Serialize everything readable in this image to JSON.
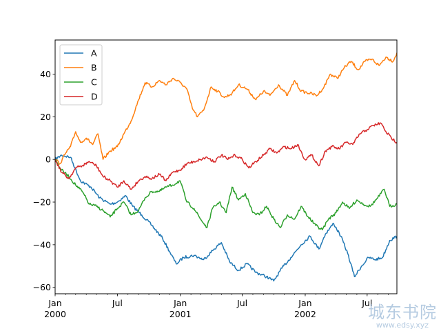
{
  "chart_data": {
    "type": "line",
    "title": "",
    "xlabel": "",
    "ylabel": "",
    "x_range": [
      "2000-01-01",
      "2002-09-26"
    ],
    "ylim": [
      -63,
      56
    ],
    "yticks": [
      -60,
      -40,
      -20,
      0,
      20,
      40
    ],
    "xticks_major": [
      {
        "date": "2000-01-01",
        "label": "Jan",
        "sublabel": "2000"
      },
      {
        "date": "2000-07-01",
        "label": "Jul",
        "sublabel": ""
      },
      {
        "date": "2001-01-01",
        "label": "Jan",
        "sublabel": "2001"
      },
      {
        "date": "2001-07-01",
        "label": "Jul",
        "sublabel": ""
      },
      {
        "date": "2002-01-01",
        "label": "Jan",
        "sublabel": "2002"
      },
      {
        "date": "2002-07-01",
        "label": "Jul",
        "sublabel": ""
      }
    ],
    "grid": false,
    "legend": "upper-left",
    "series": [
      {
        "name": "A",
        "color": "#1f77b4",
        "points": [
          [
            "2000-01-01",
            0
          ],
          [
            "2000-01-20",
            2
          ],
          [
            "2000-02-15",
            1
          ],
          [
            "2000-03-15",
            -10
          ],
          [
            "2000-04-15",
            -13
          ],
          [
            "2000-05-10",
            -18
          ],
          [
            "2000-06-10",
            -21
          ],
          [
            "2000-07-01",
            -20
          ],
          [
            "2000-07-25",
            -17
          ],
          [
            "2000-08-15",
            -22
          ],
          [
            "2000-09-10",
            -26
          ],
          [
            "2000-10-10",
            -31
          ],
          [
            "2000-11-10",
            -37
          ],
          [
            "2000-11-30",
            -43
          ],
          [
            "2000-12-20",
            -49
          ],
          [
            "2001-01-10",
            -46
          ],
          [
            "2001-02-10",
            -45
          ],
          [
            "2001-03-10",
            -47
          ],
          [
            "2001-04-10",
            -42
          ],
          [
            "2001-05-01",
            -39
          ],
          [
            "2001-05-25",
            -48
          ],
          [
            "2001-06-20",
            -52
          ],
          [
            "2001-07-15",
            -49
          ],
          [
            "2001-08-10",
            -53
          ],
          [
            "2001-09-10",
            -55
          ],
          [
            "2001-10-01",
            -57
          ],
          [
            "2001-10-25",
            -51
          ],
          [
            "2001-11-20",
            -46
          ],
          [
            "2001-12-20",
            -40
          ],
          [
            "2002-01-15",
            -36
          ],
          [
            "2002-02-10",
            -42
          ],
          [
            "2002-03-01",
            -35
          ],
          [
            "2002-03-25",
            -30
          ],
          [
            "2002-04-15",
            -36
          ],
          [
            "2002-05-05",
            -44
          ],
          [
            "2002-05-25",
            -55
          ],
          [
            "2002-06-15",
            -50
          ],
          [
            "2002-07-05",
            -46
          ],
          [
            "2002-07-25",
            -47
          ],
          [
            "2002-08-15",
            -46
          ],
          [
            "2002-09-05",
            -38
          ],
          [
            "2002-09-26",
            -36
          ]
        ]
      },
      {
        "name": "B",
        "color": "#ff7f0e",
        "points": [
          [
            "2000-01-01",
            0
          ],
          [
            "2000-01-15",
            -2
          ],
          [
            "2000-02-01",
            3
          ],
          [
            "2000-02-15",
            6
          ],
          [
            "2000-03-01",
            13
          ],
          [
            "2000-03-15",
            8
          ],
          [
            "2000-04-01",
            10
          ],
          [
            "2000-04-20",
            7
          ],
          [
            "2000-05-05",
            12
          ],
          [
            "2000-05-20",
            0
          ],
          [
            "2000-06-10",
            4
          ],
          [
            "2000-07-01",
            6
          ],
          [
            "2000-07-20",
            12
          ],
          [
            "2000-08-10",
            18
          ],
          [
            "2000-09-01",
            28
          ],
          [
            "2000-09-20",
            36
          ],
          [
            "2000-10-10",
            34
          ],
          [
            "2000-11-01",
            37
          ],
          [
            "2000-11-20",
            35
          ],
          [
            "2000-12-10",
            38
          ],
          [
            "2001-01-01",
            36
          ],
          [
            "2001-01-20",
            33
          ],
          [
            "2001-02-05",
            24
          ],
          [
            "2001-02-20",
            20
          ],
          [
            "2001-03-10",
            23
          ],
          [
            "2001-04-01",
            34
          ],
          [
            "2001-04-20",
            32
          ],
          [
            "2001-05-10",
            29
          ],
          [
            "2001-06-01",
            31
          ],
          [
            "2001-06-20",
            35
          ],
          [
            "2001-07-15",
            33
          ],
          [
            "2001-08-10",
            28
          ],
          [
            "2001-09-01",
            32
          ],
          [
            "2001-09-20",
            30
          ],
          [
            "2001-10-15",
            35
          ],
          [
            "2001-11-10",
            30
          ],
          [
            "2001-12-01",
            37
          ],
          [
            "2001-12-20",
            32
          ],
          [
            "2002-01-15",
            31
          ],
          [
            "2002-02-05",
            30
          ],
          [
            "2002-02-25",
            34
          ],
          [
            "2002-03-15",
            40
          ],
          [
            "2002-04-05",
            38
          ],
          [
            "2002-04-25",
            43
          ],
          [
            "2002-05-15",
            46
          ],
          [
            "2002-06-05",
            42
          ],
          [
            "2002-06-25",
            46
          ],
          [
            "2002-07-15",
            47
          ],
          [
            "2002-08-05",
            44
          ],
          [
            "2002-08-25",
            48
          ],
          [
            "2002-09-15",
            46
          ],
          [
            "2002-09-26",
            50
          ]
        ]
      },
      {
        "name": "C",
        "color": "#2ca02c",
        "points": [
          [
            "2000-01-01",
            0
          ],
          [
            "2000-01-20",
            -5
          ],
          [
            "2000-02-10",
            -8
          ],
          [
            "2000-03-01",
            -12
          ],
          [
            "2000-03-20",
            -15
          ],
          [
            "2000-04-10",
            -21
          ],
          [
            "2000-05-01",
            -22
          ],
          [
            "2000-05-20",
            -24
          ],
          [
            "2000-06-10",
            -27
          ],
          [
            "2000-07-01",
            -23
          ],
          [
            "2000-07-20",
            -20
          ],
          [
            "2000-08-10",
            -26
          ],
          [
            "2000-09-01",
            -24
          ],
          [
            "2000-09-20",
            -18
          ],
          [
            "2000-10-10",
            -15
          ],
          [
            "2000-11-01",
            -15
          ],
          [
            "2000-11-20",
            -13
          ],
          [
            "2000-12-10",
            -12
          ],
          [
            "2000-12-31",
            -10
          ],
          [
            "2001-01-20",
            -20
          ],
          [
            "2001-02-10",
            -23
          ],
          [
            "2001-03-01",
            -28
          ],
          [
            "2001-03-20",
            -32
          ],
          [
            "2001-04-05",
            -23
          ],
          [
            "2001-04-25",
            -20
          ],
          [
            "2001-05-15",
            -25
          ],
          [
            "2001-06-01",
            -13
          ],
          [
            "2001-06-20",
            -19
          ],
          [
            "2001-07-10",
            -16
          ],
          [
            "2001-08-01",
            -25
          ],
          [
            "2001-08-20",
            -26
          ],
          [
            "2001-09-10",
            -22
          ],
          [
            "2001-10-01",
            -28
          ],
          [
            "2001-10-20",
            -32
          ],
          [
            "2001-11-10",
            -26
          ],
          [
            "2001-12-01",
            -28
          ],
          [
            "2001-12-20",
            -22
          ],
          [
            "2002-01-10",
            -27
          ],
          [
            "2002-02-01",
            -31
          ],
          [
            "2002-02-20",
            -33
          ],
          [
            "2002-03-10",
            -28
          ],
          [
            "2002-04-01",
            -25
          ],
          [
            "2002-04-20",
            -20
          ],
          [
            "2002-05-10",
            -23
          ],
          [
            "2002-06-01",
            -19
          ],
          [
            "2002-06-20",
            -21
          ],
          [
            "2002-07-10",
            -22
          ],
          [
            "2002-08-01",
            -18
          ],
          [
            "2002-08-20",
            -14
          ],
          [
            "2002-09-05",
            -22
          ],
          [
            "2002-09-26",
            -21
          ]
        ]
      },
      {
        "name": "D",
        "color": "#d62728",
        "points": [
          [
            "2000-01-01",
            0
          ],
          [
            "2000-01-20",
            -6
          ],
          [
            "2000-02-10",
            -9
          ],
          [
            "2000-03-01",
            -4
          ],
          [
            "2000-03-20",
            -3
          ],
          [
            "2000-04-10",
            -1
          ],
          [
            "2000-05-01",
            -3
          ],
          [
            "2000-05-20",
            -8
          ],
          [
            "2000-06-10",
            -10
          ],
          [
            "2000-07-01",
            -13
          ],
          [
            "2000-07-20",
            -10
          ],
          [
            "2000-08-10",
            -14
          ],
          [
            "2000-09-01",
            -10
          ],
          [
            "2000-09-20",
            -8
          ],
          [
            "2000-10-10",
            -9
          ],
          [
            "2000-11-01",
            -7
          ],
          [
            "2000-11-20",
            -10
          ],
          [
            "2000-12-10",
            -6
          ],
          [
            "2000-12-31",
            -5
          ],
          [
            "2001-01-20",
            -2
          ],
          [
            "2001-02-10",
            -1
          ],
          [
            "2001-03-01",
            0
          ],
          [
            "2001-03-20",
            1
          ],
          [
            "2001-04-10",
            -1
          ],
          [
            "2001-05-01",
            2
          ],
          [
            "2001-05-20",
            0
          ],
          [
            "2001-06-10",
            2
          ],
          [
            "2001-07-01",
            0
          ],
          [
            "2001-07-20",
            -4
          ],
          [
            "2001-08-10",
            -1
          ],
          [
            "2001-09-01",
            2
          ],
          [
            "2001-09-20",
            5
          ],
          [
            "2001-10-10",
            3
          ],
          [
            "2001-11-01",
            6
          ],
          [
            "2001-11-20",
            5
          ],
          [
            "2001-12-10",
            7
          ],
          [
            "2001-12-31",
            0
          ],
          [
            "2002-01-20",
            2
          ],
          [
            "2002-02-10",
            -3
          ],
          [
            "2002-03-01",
            4
          ],
          [
            "2002-03-20",
            6
          ],
          [
            "2002-04-10",
            5
          ],
          [
            "2002-05-01",
            8
          ],
          [
            "2002-05-20",
            7
          ],
          [
            "2002-06-10",
            12
          ],
          [
            "2002-07-01",
            14
          ],
          [
            "2002-07-20",
            16
          ],
          [
            "2002-08-10",
            17
          ],
          [
            "2002-08-25",
            13
          ],
          [
            "2002-09-10",
            10
          ],
          [
            "2002-09-26",
            8
          ]
        ]
      }
    ]
  },
  "watermark": {
    "text": "城东书院",
    "url": "www.edsy.xyz"
  }
}
